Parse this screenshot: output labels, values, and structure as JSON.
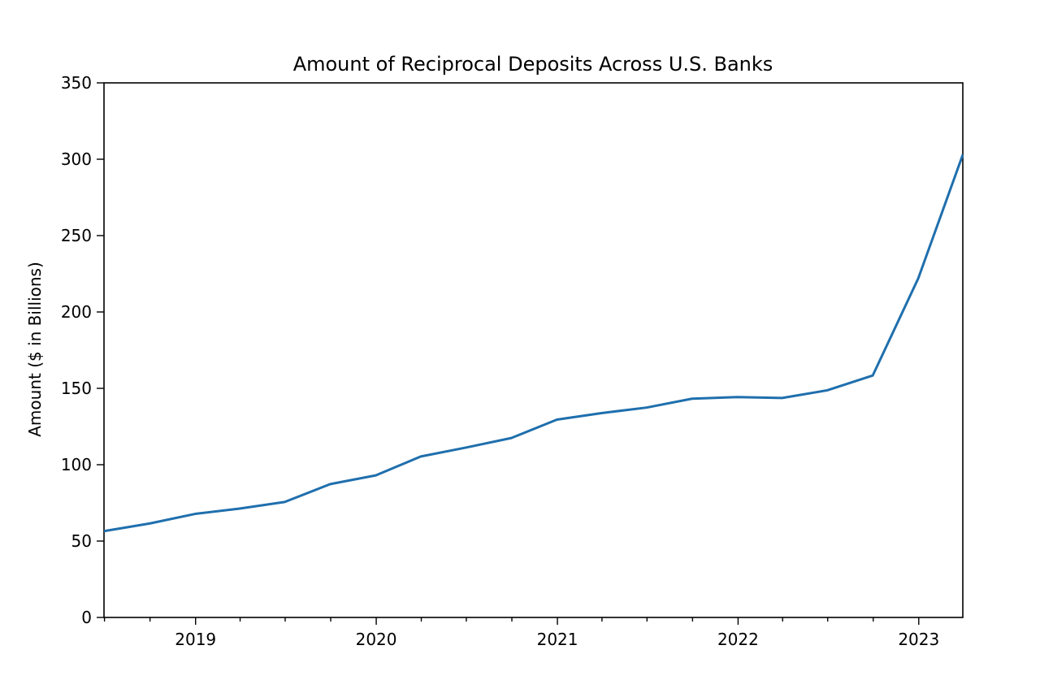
{
  "chart_data": {
    "type": "line",
    "title": "Amount of Reciprocal Deposits Across U.S. Banks",
    "xlabel": "",
    "ylabel": "Amount ($ in Billions)",
    "xlim": [
      "2018-06-30",
      "2023-03-31"
    ],
    "ylim": [
      0,
      350
    ],
    "x_tick_labels": [
      "2019",
      "2020",
      "2021",
      "2022",
      "2023"
    ],
    "y_ticks": [
      0,
      50,
      100,
      150,
      200,
      250,
      300,
      350
    ],
    "grid": false,
    "colors": {
      "series": "#1f6fad"
    },
    "x": [
      "2018-06-30",
      "2018-09-30",
      "2018-12-31",
      "2019-03-31",
      "2019-06-30",
      "2019-09-30",
      "2019-12-31",
      "2020-03-31",
      "2020-06-30",
      "2020-09-30",
      "2020-12-31",
      "2021-03-31",
      "2021-06-30",
      "2021-09-30",
      "2021-12-31",
      "2022-03-31",
      "2022-06-30",
      "2022-09-30",
      "2022-12-31",
      "2023-03-31"
    ],
    "series": [
      {
        "values": [
          56.5,
          61.5,
          67.8,
          71.3,
          75.6,
          87.3,
          93.0,
          105.4,
          111.2,
          117.5,
          129.5,
          133.8,
          137.4,
          143.2,
          144.3,
          143.7,
          148.7,
          158.4,
          222.0,
          303.0
        ]
      }
    ]
  }
}
